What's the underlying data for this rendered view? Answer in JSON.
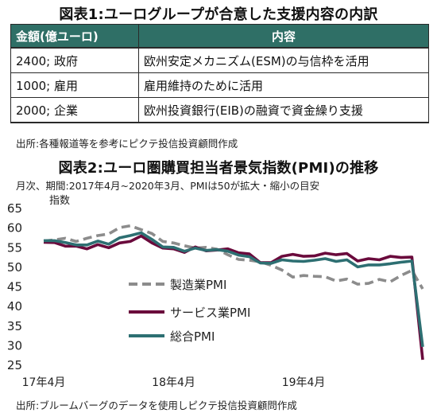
{
  "table": {
    "title": "図表1:ユーログループが合意した支援内容の内訳",
    "headers": [
      "金額(億ユーロ)",
      "内容"
    ],
    "rows": [
      {
        "amount": "2400;  政府",
        "content": "欧州安定メカニズム(ESM)の与信枠を活用"
      },
      {
        "amount": "1000;  雇用",
        "content": "雇用維持のために活用"
      },
      {
        "amount": "2000;  企業",
        "content": "欧州投資銀行(EIB)の融資で資金繰り支援"
      }
    ],
    "source": "出所:各種報道等を参考にピクテ投信投資顧問作成"
  },
  "chart_data": {
    "type": "line",
    "title": "図表2:ユーロ圏購買担当者景気指数(PMI)の推移",
    "subtitle": "月次、期間:2017年4月~2020年3月、PMIは50が拡大・縮小の目安",
    "ylabel": "指数",
    "xlabel": "",
    "ylim": [
      25,
      65
    ],
    "yticks": [
      25,
      30,
      35,
      40,
      45,
      50,
      55,
      60,
      65
    ],
    "xticks": [
      {
        "index": 0,
        "label": "17年4月"
      },
      {
        "index": 12,
        "label": "18年4月"
      },
      {
        "index": 24,
        "label": "19年4月"
      }
    ],
    "x": [
      "2017-04",
      "2017-05",
      "2017-06",
      "2017-07",
      "2017-08",
      "2017-09",
      "2017-10",
      "2017-11",
      "2017-12",
      "2018-01",
      "2018-02",
      "2018-03",
      "2018-04",
      "2018-05",
      "2018-06",
      "2018-07",
      "2018-08",
      "2018-09",
      "2018-10",
      "2018-11",
      "2018-12",
      "2019-01",
      "2019-02",
      "2019-03",
      "2019-04",
      "2019-05",
      "2019-06",
      "2019-07",
      "2019-08",
      "2019-09",
      "2019-10",
      "2019-11",
      "2019-12",
      "2020-01",
      "2020-02",
      "2020-03"
    ],
    "series": [
      {
        "name": "製造業PMI",
        "color": "#8c8c8c",
        "style": "dashed",
        "values": [
          56.7,
          57.0,
          57.4,
          56.6,
          57.4,
          58.1,
          58.5,
          60.1,
          60.6,
          59.6,
          58.6,
          56.6,
          56.2,
          55.5,
          54.9,
          55.1,
          54.6,
          53.2,
          52.0,
          51.8,
          51.4,
          50.5,
          49.3,
          47.5,
          47.9,
          47.7,
          47.6,
          46.5,
          47.0,
          45.7,
          45.9,
          46.9,
          46.3,
          47.9,
          49.2,
          44.5
        ]
      },
      {
        "name": "サービス業PMI",
        "color": "#6a0a3c",
        "style": "solid",
        "values": [
          56.4,
          56.3,
          55.4,
          55.4,
          54.7,
          55.8,
          55.0,
          56.2,
          56.6,
          58.0,
          56.2,
          54.9,
          54.7,
          53.8,
          55.2,
          54.2,
          54.4,
          54.7,
          53.7,
          53.4,
          51.2,
          51.2,
          52.8,
          53.3,
          52.8,
          52.9,
          53.6,
          53.2,
          53.5,
          51.6,
          52.2,
          51.9,
          52.8,
          52.5,
          52.6,
          26.4
        ]
      },
      {
        "name": "総合PMI",
        "color": "#2d6f72",
        "style": "solid",
        "values": [
          56.8,
          56.8,
          56.3,
          55.7,
          55.7,
          56.7,
          55.9,
          57.5,
          58.1,
          58.8,
          57.1,
          55.2,
          55.1,
          54.1,
          54.9,
          54.3,
          54.5,
          54.1,
          53.1,
          52.7,
          51.1,
          51.0,
          51.9,
          51.6,
          51.5,
          51.8,
          52.2,
          51.5,
          51.9,
          50.1,
          50.6,
          50.6,
          50.9,
          51.3,
          51.6,
          29.7
        ]
      }
    ],
    "legend_position": "center"
  },
  "chart_source": "出所:ブルームバーグのデータを使用しピクテ投信投資顧問作成"
}
